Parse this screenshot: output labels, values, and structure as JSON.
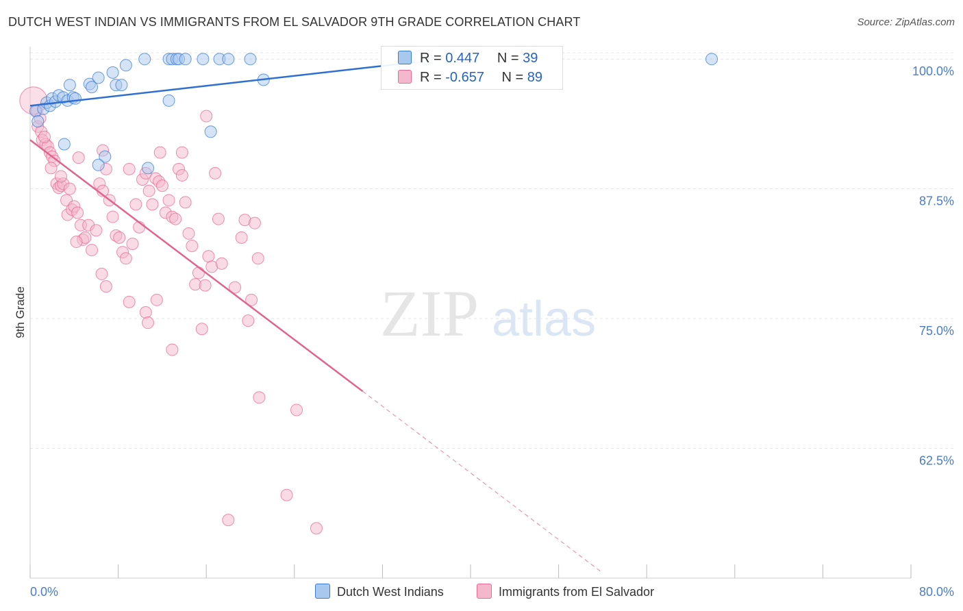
{
  "title": "DUTCH WEST INDIAN VS IMMIGRANTS FROM EL SALVADOR 9TH GRADE CORRELATION CHART",
  "source": "Source: ZipAtlas.com",
  "watermark": {
    "zip": "ZIP",
    "atlas": "atlas"
  },
  "legend": {
    "blue": {
      "r_label": "R = ",
      "r_value": "0.447",
      "n_label": "N = ",
      "n_value": "39"
    },
    "pink": {
      "r_label": "R = ",
      "r_value": "-0.657",
      "n_label": "N = ",
      "n_value": "89"
    }
  },
  "colors": {
    "blue": "#3a7bd5",
    "pink": "#e86a96",
    "blue_fill": "#a9c8ee",
    "pink_fill": "#f4b8cc",
    "axis_text": "#4a7cc9"
  },
  "chart_data": {
    "type": "scatter",
    "title": "DUTCH WEST INDIAN VS IMMIGRANTS FROM EL SALVADOR 9TH GRADE CORRELATION CHART",
    "xlabel": "",
    "ylabel": "9th Grade",
    "xlim": [
      0,
      80
    ],
    "ylim": [
      50,
      101.2
    ],
    "x_tick_labels": [
      "0.0%",
      "80.0%"
    ],
    "y_ticks": [
      62.5,
      75.0,
      87.5,
      100.0
    ],
    "y_tick_labels": [
      "62.5%",
      "75.0%",
      "87.5%",
      "100.0%"
    ],
    "series": [
      {
        "name": "Dutch West Indians",
        "color": "blue",
        "trend": {
          "x": [
            0,
            35
          ],
          "y": [
            95.5,
            99.7
          ],
          "dashed_to": null
        },
        "points": [
          [
            0.5,
            95.0
          ],
          [
            0.7,
            94.0
          ],
          [
            1.2,
            95.2
          ],
          [
            1.5,
            95.8
          ],
          [
            1.8,
            95.5
          ],
          [
            2.0,
            96.2
          ],
          [
            2.3,
            95.9
          ],
          [
            2.6,
            96.5
          ],
          [
            3.0,
            96.3
          ],
          [
            3.4,
            96.0
          ],
          [
            3.6,
            97.5
          ],
          [
            3.9,
            96.3
          ],
          [
            4.1,
            96.2
          ],
          [
            5.4,
            97.6
          ],
          [
            5.6,
            97.3
          ],
          [
            6.2,
            98.2
          ],
          [
            7.5,
            98.7
          ],
          [
            7.8,
            97.5
          ],
          [
            8.3,
            97.5
          ],
          [
            8.7,
            99.4
          ],
          [
            10.4,
            100.0
          ],
          [
            12.6,
            100.0
          ],
          [
            12.9,
            100.0
          ],
          [
            13.3,
            100.0
          ],
          [
            13.5,
            100.0
          ],
          [
            14.1,
            100.0
          ],
          [
            15.7,
            100.0
          ],
          [
            17.2,
            100.0
          ],
          [
            18.0,
            100.0
          ],
          [
            20.0,
            100.0
          ],
          [
            34.4,
            100.0
          ],
          [
            36.0,
            100.0
          ],
          [
            61.9,
            100.0
          ],
          [
            12.6,
            96.0
          ],
          [
            16.4,
            93.0
          ],
          [
            21.2,
            98.0
          ],
          [
            3.1,
            91.8
          ],
          [
            6.8,
            90.6
          ],
          [
            6.2,
            89.8
          ],
          [
            10.7,
            89.5
          ]
        ]
      },
      {
        "name": "Immigrants from El Salvador",
        "color": "pink",
        "trend": {
          "x": [
            0,
            30.2
          ],
          "y": [
            92.2,
            68.0
          ],
          "dashed_to": [
            52.0,
            50.5
          ]
        },
        "points": [
          [
            0.3,
            96.0
          ],
          [
            0.6,
            95.0
          ],
          [
            0.7,
            93.5
          ],
          [
            0.9,
            94.3
          ],
          [
            1.0,
            93.0
          ],
          [
            1.1,
            92.2
          ],
          [
            1.4,
            91.8
          ],
          [
            1.6,
            91.6
          ],
          [
            1.3,
            92.5
          ],
          [
            1.8,
            91.0
          ],
          [
            2.0,
            90.6
          ],
          [
            2.2,
            90.2
          ],
          [
            1.9,
            89.5
          ],
          [
            2.4,
            88.0
          ],
          [
            2.6,
            87.6
          ],
          [
            2.8,
            87.8
          ],
          [
            3.0,
            88.0
          ],
          [
            3.3,
            86.4
          ],
          [
            3.6,
            87.5
          ],
          [
            3.4,
            85.0
          ],
          [
            3.8,
            85.5
          ],
          [
            4.0,
            85.8
          ],
          [
            4.3,
            85.2
          ],
          [
            4.6,
            84.0
          ],
          [
            4.8,
            82.6
          ],
          [
            5.0,
            82.8
          ],
          [
            4.2,
            82.4
          ],
          [
            5.3,
            84.0
          ],
          [
            5.6,
            81.6
          ],
          [
            6.0,
            83.5
          ],
          [
            6.3,
            88.0
          ],
          [
            6.6,
            87.3
          ],
          [
            6.9,
            89.4
          ],
          [
            7.2,
            86.4
          ],
          [
            7.5,
            84.8
          ],
          [
            7.8,
            83.0
          ],
          [
            8.1,
            82.8
          ],
          [
            8.4,
            81.4
          ],
          [
            8.7,
            80.8
          ],
          [
            9.0,
            89.4
          ],
          [
            9.3,
            82.2
          ],
          [
            9.6,
            86.0
          ],
          [
            9.9,
            83.8
          ],
          [
            10.2,
            88.4
          ],
          [
            10.5,
            89.0
          ],
          [
            10.8,
            87.3
          ],
          [
            11.1,
            86.0
          ],
          [
            11.4,
            88.5
          ],
          [
            11.7,
            88.2
          ],
          [
            12.0,
            87.8
          ],
          [
            12.3,
            85.2
          ],
          [
            12.6,
            86.4
          ],
          [
            12.9,
            84.8
          ],
          [
            13.2,
            84.6
          ],
          [
            13.5,
            89.4
          ],
          [
            13.8,
            88.8
          ],
          [
            14.1,
            86.2
          ],
          [
            14.4,
            83.2
          ],
          [
            14.7,
            82.0
          ],
          [
            15.0,
            78.3
          ],
          [
            15.3,
            79.4
          ],
          [
            15.6,
            74.0
          ],
          [
            15.9,
            78.2
          ],
          [
            16.2,
            81.0
          ],
          [
            16.5,
            80.0
          ],
          [
            16.8,
            89.0
          ],
          [
            17.1,
            84.6
          ],
          [
            17.4,
            80.3
          ],
          [
            18.6,
            78.0
          ],
          [
            19.2,
            82.8
          ],
          [
            19.5,
            84.5
          ],
          [
            19.8,
            74.8
          ],
          [
            20.1,
            76.8
          ],
          [
            20.4,
            84.2
          ],
          [
            20.7,
            80.8
          ],
          [
            6.5,
            79.3
          ],
          [
            6.9,
            78.1
          ],
          [
            9.0,
            76.6
          ],
          [
            10.5,
            75.6
          ],
          [
            10.7,
            74.6
          ],
          [
            11.5,
            76.8
          ],
          [
            12.9,
            72.0
          ],
          [
            16.0,
            94.5
          ],
          [
            11.8,
            91.0
          ],
          [
            13.8,
            91.0
          ],
          [
            6.6,
            91.2
          ],
          [
            4.4,
            90.5
          ],
          [
            2.8,
            88.7
          ],
          [
            20.8,
            67.4
          ],
          [
            24.2,
            66.2
          ],
          [
            23.3,
            58.0
          ],
          [
            18.0,
            55.6
          ],
          [
            26.0,
            54.8
          ]
        ]
      }
    ]
  },
  "bottom_legend": {
    "blue": "Dutch West Indians",
    "pink": "Immigrants from El Salvador"
  }
}
